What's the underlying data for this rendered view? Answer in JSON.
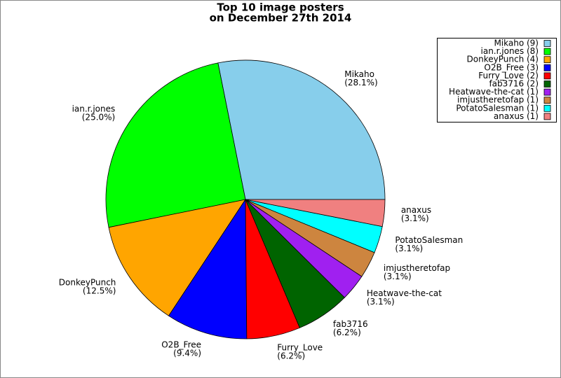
{
  "chart_data": {
    "type": "pie",
    "title": [
      "Top 10 image posters",
      "on December 27th 2014"
    ],
    "categories": [
      "Mikaho",
      "ian.r.jones",
      "DonkeyPunch",
      "O2B_Free",
      "Furry_Love",
      "fab3716",
      "Heatwave-the-cat",
      "imjustheretofap",
      "PotatoSalesman",
      "anaxus"
    ],
    "values": [
      28.1,
      25.0,
      12.5,
      9.4,
      6.2,
      6.2,
      3.1,
      3.1,
      3.1,
      3.1
    ],
    "value_labels": [
      "(28.1%)",
      "(25.0%)",
      "(12.5%)",
      "(9.4%)",
      "(6.2%)",
      "(6.2%)",
      "(3.1%)",
      "(3.1%)",
      "(3.1%)",
      "(3.1%)"
    ],
    "colors": [
      "#87ceeb",
      "#00ff00",
      "#ffa500",
      "#0000ff",
      "#ff0000",
      "#006400",
      "#a020f0",
      "#cd853f",
      "#00ffff",
      "#f08080"
    ],
    "legend_labels": [
      "Mikaho (9)",
      "ian.r.jones (8)",
      "DonkeyPunch (4)",
      "O2B_Free (3)",
      "Furry_Love (2)",
      "fab3716 (2)",
      "Heatwave-the-cat (1)",
      "imjustheretofap (1)",
      "PotatoSalesman (1)",
      "anaxus (1)"
    ],
    "legend": "upper right"
  }
}
